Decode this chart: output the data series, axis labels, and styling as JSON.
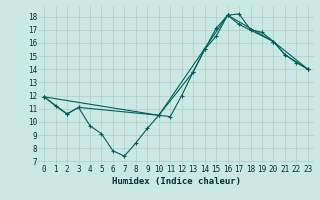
{
  "xlabel": "Humidex (Indice chaleur)",
  "bg_color": "#cbe8e3",
  "grid_color": "#b0cec9",
  "line_color": "#006060",
  "xlim": [
    -0.5,
    23.5
  ],
  "ylim": [
    6.8,
    18.8
  ],
  "xticks": [
    0,
    1,
    2,
    3,
    4,
    5,
    6,
    7,
    8,
    9,
    10,
    11,
    12,
    13,
    14,
    15,
    16,
    17,
    18,
    19,
    20,
    21,
    22,
    23
  ],
  "yticks": [
    7,
    8,
    9,
    10,
    11,
    12,
    13,
    14,
    15,
    16,
    17,
    18
  ],
  "line1_x": [
    0,
    1,
    2,
    3,
    4,
    5,
    6,
    7,
    8,
    9,
    10,
    11,
    12,
    13,
    14,
    15,
    16,
    17,
    18,
    19,
    20,
    21,
    22,
    23
  ],
  "line1_y": [
    11.9,
    11.2,
    10.6,
    11.1,
    9.7,
    9.1,
    7.8,
    7.4,
    8.4,
    9.5,
    10.5,
    10.4,
    12.0,
    13.8,
    15.5,
    16.5,
    18.1,
    18.2,
    17.0,
    16.8,
    16.1,
    15.1,
    14.5,
    14.0
  ],
  "line2_x": [
    0,
    2,
    3,
    10,
    13,
    14,
    15,
    16,
    17,
    20,
    21,
    23
  ],
  "line2_y": [
    11.9,
    10.6,
    11.1,
    10.5,
    13.8,
    15.5,
    17.1,
    18.1,
    17.4,
    16.1,
    15.1,
    14.0
  ],
  "line3_x": [
    0,
    10,
    16,
    20,
    23
  ],
  "line3_y": [
    11.9,
    10.5,
    18.1,
    16.1,
    14.0
  ]
}
